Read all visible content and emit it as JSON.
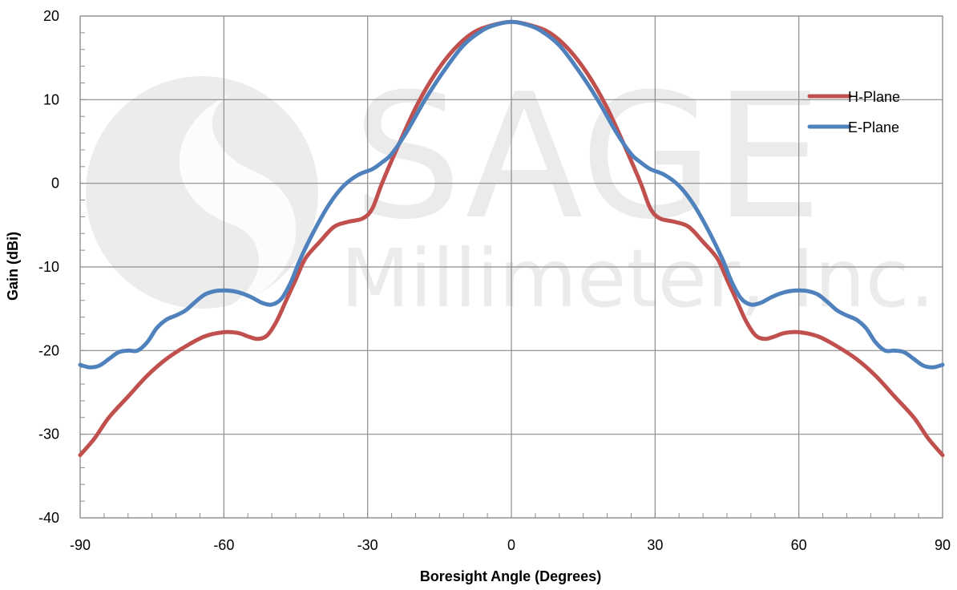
{
  "watermark": {
    "line1": "SAGE",
    "line2": "Millimeter, Inc."
  },
  "chart_data": {
    "type": "line",
    "title": "",
    "xlabel": "Boresight Angle (Degrees)",
    "ylabel": "Gain (dBi)",
    "xlim": [
      -90,
      90
    ],
    "ylim": [
      -40,
      20
    ],
    "xticks": [
      -90,
      -60,
      -30,
      0,
      30,
      60,
      90
    ],
    "yticks": [
      -40,
      -30,
      -20,
      -10,
      0,
      10,
      20
    ],
    "x_minor_step": 5,
    "y_minor_step": 2,
    "grid": true,
    "legend_position": "right",
    "series": [
      {
        "name": "H-Plane",
        "color": "#c0504d",
        "points": [
          [
            -90,
            -32.5
          ],
          [
            -87,
            -30.5
          ],
          [
            -84,
            -28
          ],
          [
            -80,
            -25.5
          ],
          [
            -76,
            -23
          ],
          [
            -72,
            -21
          ],
          [
            -68,
            -19.5
          ],
          [
            -64,
            -18.3
          ],
          [
            -60,
            -17.8
          ],
          [
            -57,
            -17.9
          ],
          [
            -55,
            -18.3
          ],
          [
            -53,
            -18.6
          ],
          [
            -51,
            -18.2
          ],
          [
            -49,
            -16.5
          ],
          [
            -47,
            -14
          ],
          [
            -45,
            -11.5
          ],
          [
            -43,
            -9
          ],
          [
            -40,
            -7
          ],
          [
            -37,
            -5.2
          ],
          [
            -34,
            -4.6
          ],
          [
            -31,
            -4.2
          ],
          [
            -29,
            -3
          ],
          [
            -27,
            0
          ],
          [
            -24,
            4
          ],
          [
            -20,
            9
          ],
          [
            -16,
            13
          ],
          [
            -12,
            16
          ],
          [
            -8,
            18
          ],
          [
            -4,
            18.9
          ],
          [
            0,
            19.3
          ],
          [
            4,
            18.9
          ],
          [
            8,
            18
          ],
          [
            12,
            16
          ],
          [
            16,
            13
          ],
          [
            20,
            9
          ],
          [
            24,
            4
          ],
          [
            27,
            0
          ],
          [
            29,
            -3
          ],
          [
            31,
            -4.2
          ],
          [
            34,
            -4.6
          ],
          [
            37,
            -5.2
          ],
          [
            40,
            -7
          ],
          [
            43,
            -9
          ],
          [
            45,
            -11.5
          ],
          [
            47,
            -14
          ],
          [
            49,
            -16.5
          ],
          [
            51,
            -18.2
          ],
          [
            53,
            -18.6
          ],
          [
            55,
            -18.3
          ],
          [
            57,
            -17.9
          ],
          [
            60,
            -17.8
          ],
          [
            64,
            -18.3
          ],
          [
            68,
            -19.5
          ],
          [
            72,
            -21
          ],
          [
            76,
            -23
          ],
          [
            80,
            -25.5
          ],
          [
            84,
            -28
          ],
          [
            87,
            -30.5
          ],
          [
            90,
            -32.5
          ]
        ]
      },
      {
        "name": "E-Plane",
        "color": "#4f81bd",
        "points": [
          [
            -90,
            -21.7
          ],
          [
            -88,
            -22
          ],
          [
            -86,
            -21.8
          ],
          [
            -84,
            -21
          ],
          [
            -82,
            -20.2
          ],
          [
            -80,
            -20
          ],
          [
            -78,
            -20
          ],
          [
            -76,
            -19
          ],
          [
            -74,
            -17.3
          ],
          [
            -72,
            -16.3
          ],
          [
            -70,
            -15.8
          ],
          [
            -68,
            -15.2
          ],
          [
            -66,
            -14.2
          ],
          [
            -64,
            -13.3
          ],
          [
            -62,
            -12.9
          ],
          [
            -60,
            -12.8
          ],
          [
            -58,
            -12.9
          ],
          [
            -56,
            -13.2
          ],
          [
            -54,
            -13.7
          ],
          [
            -52,
            -14.3
          ],
          [
            -50,
            -14.5
          ],
          [
            -48,
            -13.8
          ],
          [
            -46,
            -11.8
          ],
          [
            -44,
            -9
          ],
          [
            -41,
            -5.5
          ],
          [
            -38,
            -2.5
          ],
          [
            -35,
            -0.3
          ],
          [
            -32,
            1
          ],
          [
            -29,
            1.7
          ],
          [
            -27,
            2.5
          ],
          [
            -25,
            3.5
          ],
          [
            -22,
            6
          ],
          [
            -18,
            10
          ],
          [
            -14,
            13.5
          ],
          [
            -10,
            16.5
          ],
          [
            -6,
            18.3
          ],
          [
            -3,
            19
          ],
          [
            0,
            19.3
          ],
          [
            3,
            19
          ],
          [
            6,
            18.3
          ],
          [
            10,
            16.5
          ],
          [
            14,
            13.5
          ],
          [
            18,
            10
          ],
          [
            22,
            6
          ],
          [
            25,
            3.5
          ],
          [
            27,
            2.5
          ],
          [
            29,
            1.7
          ],
          [
            32,
            1
          ],
          [
            35,
            -0.3
          ],
          [
            38,
            -2.5
          ],
          [
            41,
            -5.5
          ],
          [
            44,
            -9
          ],
          [
            46,
            -11.8
          ],
          [
            48,
            -13.8
          ],
          [
            50,
            -14.5
          ],
          [
            52,
            -14.3
          ],
          [
            54,
            -13.7
          ],
          [
            56,
            -13.2
          ],
          [
            58,
            -12.9
          ],
          [
            60,
            -12.8
          ],
          [
            62,
            -12.9
          ],
          [
            64,
            -13.3
          ],
          [
            66,
            -14.2
          ],
          [
            68,
            -15.2
          ],
          [
            70,
            -15.8
          ],
          [
            72,
            -16.3
          ],
          [
            74,
            -17.3
          ],
          [
            76,
            -19
          ],
          [
            78,
            -20
          ],
          [
            80,
            -20
          ],
          [
            82,
            -20.2
          ],
          [
            84,
            -21
          ],
          [
            86,
            -21.8
          ],
          [
            88,
            -22
          ],
          [
            90,
            -21.7
          ]
        ]
      }
    ]
  }
}
